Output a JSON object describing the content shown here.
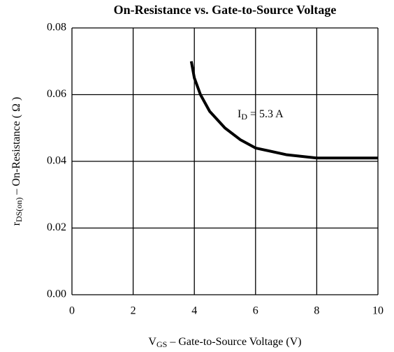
{
  "chart_data": {
    "type": "line",
    "title": "On-Resistance vs. Gate-to-Source Voltage",
    "xlabel": {
      "main": "V",
      "sub": "GS",
      "rest": " – Gate-to-Source Voltage (V)"
    },
    "ylabel": {
      "main": "r",
      "sub": "DS(on)",
      "rest": "  –  On-Resistance ( Ω )"
    },
    "annotation": {
      "main": "I",
      "sub": "D",
      "rest": " = 5.3 A"
    },
    "x": [
      3.9,
      4,
      4.2,
      4.5,
      5,
      5.5,
      6,
      7,
      8,
      9,
      10
    ],
    "series": [
      {
        "name": "ID = 5.3 A",
        "color": "#000000",
        "values": [
          0.07,
          0.065,
          0.06,
          0.055,
          0.05,
          0.0465,
          0.044,
          0.042,
          0.041,
          0.041,
          0.041
        ]
      }
    ],
    "xlim": [
      0,
      10
    ],
    "xticks": [
      0,
      2,
      4,
      6,
      8,
      10
    ],
    "ylim": [
      0,
      0.08
    ],
    "yticks": [
      {
        "value": 0,
        "label": "0.00"
      },
      {
        "value": 0.02,
        "label": "0.02"
      },
      {
        "value": 0.04,
        "label": "0.04"
      },
      {
        "value": 0.06,
        "label": "0.06"
      },
      {
        "value": 0.08,
        "label": "0.08"
      }
    ],
    "grid": true
  }
}
